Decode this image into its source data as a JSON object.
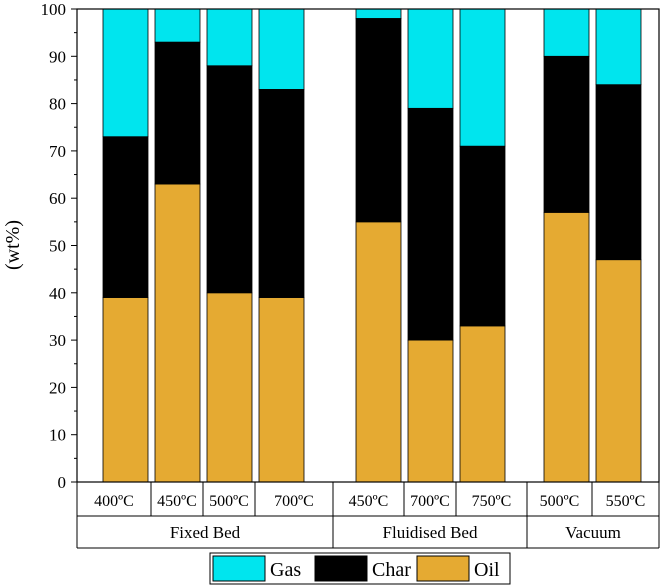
{
  "chart_data": {
    "type": "bar",
    "stacked": true,
    "title": "",
    "xlabel": "",
    "ylabel": "(wt%)",
    "ylim": [
      0,
      100
    ],
    "yticks": [
      0,
      10,
      20,
      30,
      40,
      50,
      60,
      70,
      80,
      90,
      100
    ],
    "categories": [
      "400ºC",
      "450ºC",
      "500ºC",
      "700ºC",
      "450ºC",
      "700ºC",
      "750ºC",
      "500ºC",
      "550ºC"
    ],
    "groups": [
      {
        "name": "Fixed Bed",
        "count": 4
      },
      {
        "name": "Fluidised Bed",
        "count": 3
      },
      {
        "name": "Vacuum",
        "count": 2
      }
    ],
    "series": [
      {
        "name": "Oil",
        "color": "#E5AA32",
        "values": [
          39,
          63,
          40,
          39,
          55,
          30,
          33,
          57,
          47
        ]
      },
      {
        "name": "Char",
        "color": "#000000",
        "values": [
          34,
          30,
          48,
          44,
          43,
          49,
          38,
          33,
          37
        ]
      },
      {
        "name": "Gas",
        "color": "#00E5EE",
        "values": [
          27,
          7,
          12,
          17,
          2,
          21,
          29,
          10,
          16
        ]
      }
    ],
    "legend": {
      "position": "bottom",
      "order": [
        "Gas",
        "Char",
        "Oil"
      ]
    }
  }
}
